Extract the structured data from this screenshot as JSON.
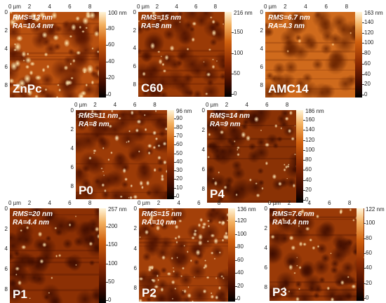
{
  "panels": [
    {
      "id": "znpc",
      "name": "ZnPc",
      "rms": "RMS=13 nm",
      "ra": "RA=10.4 nm",
      "xticks": [
        "0 µm",
        "2",
        "4",
        "6",
        "8"
      ],
      "yticks": [
        "0",
        "2",
        "4",
        "6",
        "8"
      ],
      "cbar_max_label": "100 nm",
      "cbar_ticks": [
        "80",
        "60",
        "40",
        "20",
        "0"
      ]
    },
    {
      "id": "c60",
      "name": "C60",
      "rms": "RMS=15 nm",
      "ra": "RA=8 nm",
      "xticks": [
        "0 µm",
        "2",
        "4",
        "6",
        "8"
      ],
      "yticks": [
        "0",
        "2",
        "4",
        "6",
        "8"
      ],
      "cbar_max_label": "216 nm",
      "cbar_ticks": [
        "150",
        "100",
        "50",
        "0"
      ]
    },
    {
      "id": "amc14",
      "name": "AMC14",
      "rms": "RMS=6.7 nm",
      "ra": "RA=4.3 nm",
      "xticks": [
        "0 µm",
        "2",
        "4",
        "6",
        "8"
      ],
      "yticks": [
        "0",
        "2",
        "4",
        "6",
        "8"
      ],
      "cbar_max_label": "163 nm",
      "cbar_ticks": [
        "140",
        "120",
        "100",
        "80",
        "60",
        "40",
        "20",
        "0"
      ]
    },
    {
      "id": "p0",
      "name": "P0",
      "rms": "RMS=11 nm",
      "ra": "RA=8 nm",
      "xticks": [
        "0 µm",
        "2",
        "4",
        "6",
        "8"
      ],
      "yticks": [
        "0",
        "2",
        "4",
        "6",
        "8"
      ],
      "cbar_max_label": "96 nm",
      "cbar_ticks": [
        "90",
        "80",
        "70",
        "60",
        "50",
        "40",
        "30",
        "20",
        "10",
        "0"
      ]
    },
    {
      "id": "p4",
      "name": "P4",
      "rms": "RMS=14 nm",
      "ra": "RA=9 nm",
      "xticks": [
        "0 µm",
        "2",
        "4",
        "6",
        "8"
      ],
      "yticks": [
        "0",
        "2",
        "4",
        "6",
        "8"
      ],
      "cbar_max_label": "186 nm",
      "cbar_ticks": [
        "160",
        "140",
        "120",
        "100",
        "80",
        "60",
        "40",
        "20",
        "0"
      ]
    },
    {
      "id": "p1",
      "name": "P1",
      "rms": "RMS=20 nm",
      "ra": "RA=4.4 nm",
      "xticks": [
        "0 µm",
        "2",
        "4",
        "6",
        "8"
      ],
      "yticks": [
        "0",
        "2",
        "4",
        "6",
        "8"
      ],
      "cbar_max_label": "257 nm",
      "cbar_ticks": [
        "200",
        "150",
        "100",
        "50",
        "0"
      ]
    },
    {
      "id": "p2",
      "name": "P2",
      "rms": "RMS=15 nm",
      "ra": "RA=10 nm",
      "xticks": [
        "0 µm",
        "2",
        "4",
        "6",
        "8"
      ],
      "yticks": [
        "0",
        "2",
        "4",
        "6",
        "8"
      ],
      "cbar_max_label": "136 nm",
      "cbar_ticks": [
        "120",
        "100",
        "80",
        "60",
        "40",
        "20",
        "0"
      ]
    },
    {
      "id": "p3",
      "name": "P3",
      "rms": "RMS=7.6 nm",
      "ra": "RA=4.4 nm",
      "xticks": [
        "0 µm",
        "2",
        "4",
        "6",
        "8"
      ],
      "yticks": [
        "0",
        "2",
        "4",
        "6",
        "8"
      ],
      "cbar_max_label": "122 nm",
      "cbar_ticks": [
        "100",
        "80",
        "60",
        "40",
        "20",
        "0"
      ]
    }
  ],
  "colors": {
    "dark": "#2a0700",
    "mid": "#a83a08",
    "light": "#f5d9a0"
  }
}
